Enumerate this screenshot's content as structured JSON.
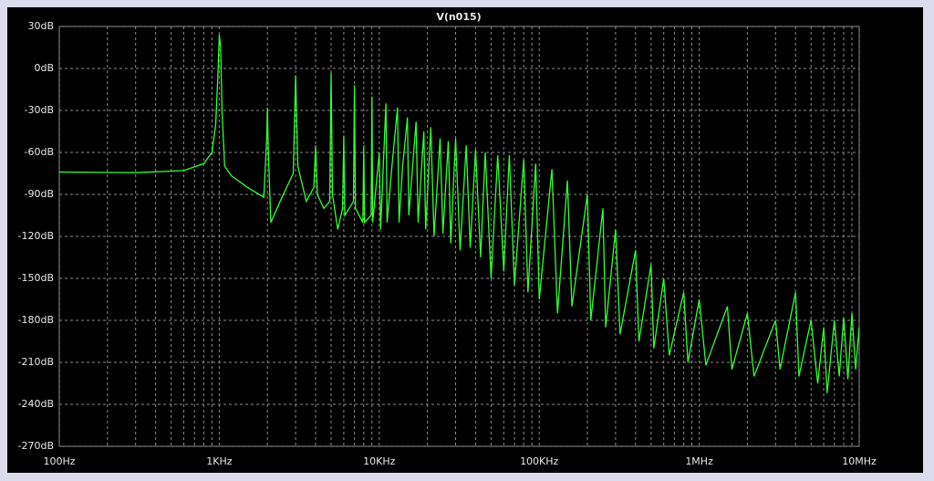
{
  "chart_data": {
    "type": "line",
    "log_x": true,
    "grid": true,
    "series": [
      {
        "name": "V(n015)",
        "color": "#33ff33",
        "values": [
          -74,
          -74.5,
          -73,
          -68,
          -60,
          -40,
          -5,
          24,
          15,
          -30,
          -70,
          -77,
          -85,
          -92,
          -50,
          -28,
          -55,
          -110,
          -95,
          -75,
          -5,
          -70,
          -95,
          -85,
          -55,
          -90,
          -100,
          -95,
          -3,
          -90,
          -115,
          -100,
          -48,
          -105,
          -95,
          -12,
          -100,
          -110,
          -55,
          -110,
          -105,
          -20,
          -110,
          -60,
          -115,
          -25,
          -110,
          -70,
          -28,
          -110,
          -70,
          -35,
          -105,
          -38,
          -110,
          -45,
          -115,
          -42,
          -120,
          -50,
          -118,
          -52,
          -125,
          -50,
          -130,
          -55,
          -128,
          -58,
          -135,
          -60,
          -150,
          -62,
          -145,
          -62,
          -155,
          -65,
          -160,
          -68,
          -165,
          -72,
          -175,
          -80,
          -170,
          -90,
          -180,
          -100,
          -185,
          -115,
          -190,
          -130,
          -195,
          -140,
          -200,
          -150,
          -205,
          -160,
          -210,
          -165,
          -212,
          -170,
          -215,
          -175,
          -220,
          -180,
          -215,
          -160,
          -220,
          -180,
          -225,
          -185,
          -232,
          -180,
          -220,
          -178,
          -222,
          -175,
          -215,
          -185
        ]
      }
    ],
    "x": [
      100,
      300,
      600,
      800,
      900,
      950,
      980,
      1000,
      1020,
      1040,
      1080,
      1200,
      1500,
      1900,
      1980,
      2000,
      2020,
      2100,
      2400,
      2900,
      3000,
      3100,
      3500,
      3900,
      4000,
      4100,
      4500,
      4900,
      5000,
      5100,
      5500,
      5900,
      6000,
      6100,
      6900,
      7000,
      7100,
      7900,
      8000,
      8100,
      8900,
      9000,
      9100,
      10000,
      10200,
      11000,
      11200,
      12000,
      13000,
      13300,
      14000,
      15000,
      15300,
      17000,
      17500,
      19000,
      19500,
      21000,
      22000,
      24000,
      25000,
      27000,
      28000,
      30000,
      32000,
      35000,
      37000,
      40000,
      43000,
      46000,
      50000,
      55000,
      60000,
      65000,
      70000,
      80000,
      85000,
      95000,
      100000,
      120000,
      130000,
      150000,
      160000,
      200000,
      210000,
      250000,
      260000,
      300000,
      320000,
      400000,
      420000,
      500000,
      520000,
      600000,
      650000,
      800000,
      850000,
      1000000,
      1100000,
      1500000,
      1600000,
      2000000,
      2200000,
      3000000,
      3200000,
      4000000,
      4200000,
      5000000,
      5500000,
      6000000,
      6300000,
      7000000,
      7500000,
      8000000,
      8500000,
      9000000,
      9500000,
      10000000
    ],
    "xlim": [
      100,
      10000000
    ],
    "xticks": [
      {
        "value": 100,
        "label": "100Hz"
      },
      {
        "value": 1000,
        "label": "1KHz"
      },
      {
        "value": 10000,
        "label": "10KHz"
      },
      {
        "value": 100000,
        "label": "100KHz"
      },
      {
        "value": 1000000,
        "label": "1MHz"
      },
      {
        "value": 10000000,
        "label": "10MHz"
      }
    ],
    "ylim": [
      -270,
      30
    ],
    "yticks": [
      {
        "value": 30,
        "label": "30dB"
      },
      {
        "value": 0,
        "label": "0dB"
      },
      {
        "value": -30,
        "label": "-30dB"
      },
      {
        "value": -60,
        "label": "-60dB"
      },
      {
        "value": -90,
        "label": "-90dB"
      },
      {
        "value": -120,
        "label": "-120dB"
      },
      {
        "value": -150,
        "label": "-150dB"
      },
      {
        "value": -180,
        "label": "-180dB"
      },
      {
        "value": -210,
        "label": "-210dB"
      },
      {
        "value": -240,
        "label": "-240dB"
      },
      {
        "value": -270,
        "label": "-270dB"
      }
    ]
  }
}
